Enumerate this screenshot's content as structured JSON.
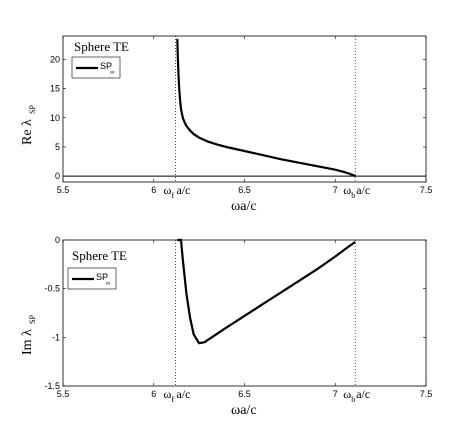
{
  "chart_data": [
    {
      "type": "line",
      "annotation": "Sphere TE",
      "ylabel_main": "Re λ",
      "ylabel_sub": "SP",
      "xlabel": "ωa/c",
      "xlim": [
        5.5,
        7.5
      ],
      "ylim": [
        -1,
        24
      ],
      "xticks": [
        "5.5",
        "6",
        "6.5",
        "7",
        "7.5"
      ],
      "yticks": [
        "0",
        "5",
        "10",
        "15",
        "20"
      ],
      "legend": {
        "label": "SP",
        "sub": "∞",
        "placement": "top-left"
      },
      "markers": [
        {
          "name": "f",
          "label": "ω",
          "sub": "f",
          "rest": "a/c",
          "x": 6.12
        },
        {
          "name": "b",
          "label": "ω",
          "sub": "b",
          "rest": "a/c",
          "x": 7.11
        }
      ],
      "hline": 0,
      "series": [
        {
          "x": [
            6.13,
            6.133,
            6.137,
            6.14,
            6.145,
            6.15,
            6.16,
            6.17,
            6.18,
            6.2,
            6.22,
            6.25,
            6.3,
            6.35,
            6.4,
            6.5,
            6.6,
            6.7,
            6.8,
            6.9,
            7.0,
            7.05,
            7.08,
            7.1,
            7.11
          ],
          "y": [
            23.5,
            20.0,
            17.0,
            15.0,
            13.0,
            11.5,
            10.0,
            9.2,
            8.6,
            7.8,
            7.2,
            6.6,
            5.9,
            5.4,
            5.0,
            4.3,
            3.6,
            2.9,
            2.3,
            1.7,
            1.1,
            0.7,
            0.4,
            0.15,
            0.0
          ]
        }
      ]
    },
    {
      "type": "line",
      "annotation": "Sphere TE",
      "ylabel_main": "Im λ",
      "ylabel_sub": "SP",
      "xlabel": "ωa/c",
      "xlim": [
        5.5,
        7.5
      ],
      "ylim": [
        -1.5,
        0
      ],
      "xticks": [
        "5.5",
        "6",
        "6.5",
        "7",
        "7.5"
      ],
      "yticks": [
        "0",
        "-0.5",
        "-1",
        "-1.5"
      ],
      "legend": {
        "label": "SP",
        "sub": "∞",
        "placement": "top-left"
      },
      "markers": [
        {
          "name": "f",
          "label": "ω",
          "sub": "f",
          "rest": "a/c",
          "x": 6.12
        },
        {
          "name": "b",
          "label": "ω",
          "sub": "b",
          "rest": "a/c",
          "x": 7.11
        }
      ],
      "series": [
        {
          "x": [
            6.13,
            6.15,
            6.16,
            6.18,
            6.2,
            6.22,
            6.25,
            6.28,
            6.32,
            6.4,
            6.5,
            6.6,
            6.7,
            6.8,
            6.9,
            7.0,
            7.05,
            7.11
          ],
          "y": [
            0.0,
            0.0,
            -0.2,
            -0.55,
            -0.8,
            -0.97,
            -1.06,
            -1.05,
            -1.0,
            -0.9,
            -0.78,
            -0.66,
            -0.54,
            -0.42,
            -0.3,
            -0.17,
            -0.1,
            -0.02
          ]
        }
      ]
    }
  ]
}
